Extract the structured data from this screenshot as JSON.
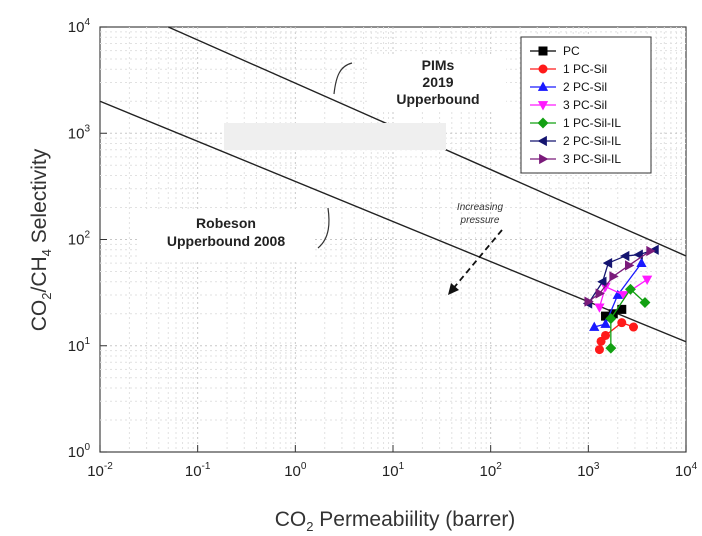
{
  "chart_data": {
    "type": "scatter",
    "xscale": "log",
    "yscale": "log",
    "xlim": [
      0.01,
      10000
    ],
    "ylim": [
      1,
      10000
    ],
    "grid": true,
    "legend_position": "top-right",
    "xlabel": {
      "prefix": "CO",
      "sub": "2",
      "rest": " Permeabiility (barrer)"
    },
    "ylabel": {
      "a": "CO",
      "a_sub": "2",
      "b": "/CH",
      "b_sub": "4",
      "c": " Selectivity"
    },
    "xticks": [
      {
        "value": 0.01,
        "base": "10",
        "exp": "-2"
      },
      {
        "value": 0.1,
        "base": "10",
        "exp": "-1"
      },
      {
        "value": 1,
        "base": "10",
        "exp": "0"
      },
      {
        "value": 10,
        "base": "10",
        "exp": "1"
      },
      {
        "value": 100,
        "base": "10",
        "exp": "2"
      },
      {
        "value": 1000,
        "base": "10",
        "exp": "3"
      },
      {
        "value": 10000,
        "base": "10",
        "exp": "4"
      }
    ],
    "yticks": [
      {
        "value": 1,
        "base": "10",
        "exp": "0"
      },
      {
        "value": 10,
        "base": "10",
        "exp": "1"
      },
      {
        "value": 100,
        "base": "10",
        "exp": "2"
      },
      {
        "value": 1000,
        "base": "10",
        "exp": "3"
      },
      {
        "value": 10000,
        "base": "10",
        "exp": "4"
      }
    ],
    "upperbounds": [
      {
        "name": "Robeson Upperbound 2008",
        "points": [
          [
            0.01,
            2000
          ],
          [
            10000,
            10.9
          ]
        ]
      },
      {
        "name": "PIMs 2019 Upperbound",
        "points": [
          [
            0.05,
            10000
          ],
          [
            10000,
            70
          ]
        ]
      }
    ],
    "annotations": {
      "pims": [
        "PIMs",
        "2019",
        "Upperbound"
      ],
      "robeson": [
        "Robeson",
        "Upperbound 2008"
      ],
      "pressure": [
        "Increasing",
        "pressure"
      ]
    },
    "series": [
      {
        "name": "PC",
        "marker": "square",
        "color": "#000000",
        "points": [
          [
            1500,
            19
          ],
          [
            1800,
            20
          ],
          [
            2200,
            22
          ]
        ]
      },
      {
        "name": "1 PC-Sil",
        "marker": "circle",
        "color": "#ff1a1a",
        "points": [
          [
            1300,
            9.2
          ],
          [
            1350,
            11
          ],
          [
            1500,
            12.5
          ],
          [
            2200,
            16.5
          ],
          [
            2900,
            15
          ]
        ]
      },
      {
        "name": "2 PC-Sil",
        "marker": "triangle-up",
        "color": "#1a1aff",
        "points": [
          [
            1150,
            15
          ],
          [
            1500,
            16
          ],
          [
            2000,
            30
          ],
          [
            3500,
            60
          ]
        ]
      },
      {
        "name": "3 PC-Sil",
        "marker": "triangle-down",
        "color": "#ff1aff",
        "points": [
          [
            1300,
            23
          ],
          [
            1500,
            36
          ],
          [
            2300,
            30
          ],
          [
            4000,
            42
          ]
        ]
      },
      {
        "name": "1 PC-Sil-IL",
        "marker": "diamond",
        "color": "#12a012",
        "points": [
          [
            1700,
            9.5
          ],
          [
            1700,
            18
          ],
          [
            2700,
            34
          ],
          [
            3800,
            25.5
          ]
        ]
      },
      {
        "name": "2 PC-Sil-IL",
        "marker": "triangle-left",
        "color": "#141470",
        "points": [
          [
            1000,
            25
          ],
          [
            1400,
            40
          ],
          [
            1600,
            60
          ],
          [
            2400,
            70
          ],
          [
            3300,
            72
          ],
          [
            4800,
            80
          ]
        ]
      },
      {
        "name": "3 PC-Sil-IL",
        "marker": "triangle-right",
        "color": "#7a1a7a",
        "points": [
          [
            1000,
            26
          ],
          [
            1300,
            31
          ],
          [
            1800,
            45
          ],
          [
            2600,
            57
          ],
          [
            4300,
            78
          ]
        ]
      }
    ]
  }
}
